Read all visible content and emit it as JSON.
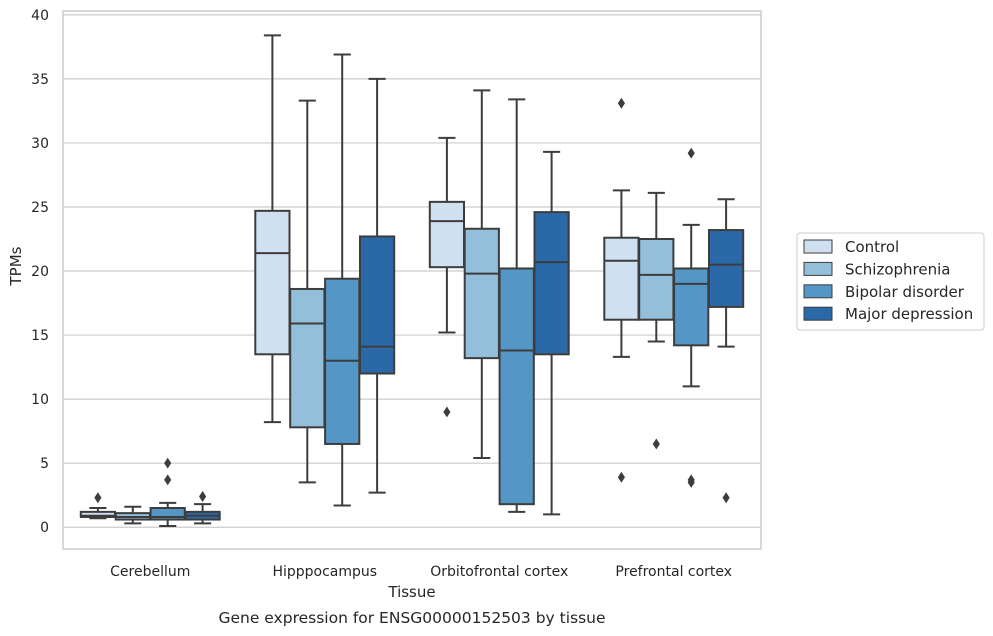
{
  "chart_data": {
    "type": "box",
    "xlabel": "Tissue",
    "ylabel": "TPMs",
    "caption": "Gene expression for ENSG00000152503 by tissue",
    "ylim": [
      -1.7,
      40.3
    ],
    "yticks": [
      0,
      5,
      10,
      15,
      20,
      25,
      30,
      35,
      40
    ],
    "grid": "horizontal",
    "legend_position": "right",
    "categories": [
      "Cerebellum",
      "Hipppocampus",
      "Orbitofrontal cortex",
      "Prefrontal cortex"
    ],
    "series": [
      {
        "name": "Control",
        "color": "#cfe0f1",
        "boxes": [
          {
            "whislo": 0.7,
            "q1": 0.8,
            "med": 0.9,
            "q3": 1.2,
            "whishi": 1.5,
            "fliers": [
              2.3
            ]
          },
          {
            "whislo": 8.2,
            "q1": 13.5,
            "med": 21.4,
            "q3": 24.7,
            "whishi": 38.4,
            "fliers": []
          },
          {
            "whislo": 15.2,
            "q1": 20.3,
            "med": 23.9,
            "q3": 25.4,
            "whishi": 30.4,
            "fliers": [
              9.0
            ]
          },
          {
            "whislo": 13.3,
            "q1": 16.2,
            "med": 20.8,
            "q3": 22.6,
            "whishi": 26.3,
            "fliers": [
              33.1,
              3.9
            ]
          }
        ]
      },
      {
        "name": "Schizophrenia",
        "color": "#93bfdb",
        "boxes": [
          {
            "whislo": 0.3,
            "q1": 0.6,
            "med": 0.8,
            "q3": 1.1,
            "whishi": 1.6,
            "fliers": []
          },
          {
            "whislo": 3.5,
            "q1": 7.8,
            "med": 15.9,
            "q3": 18.6,
            "whishi": 33.3,
            "fliers": []
          },
          {
            "whislo": 5.4,
            "q1": 13.2,
            "med": 19.8,
            "q3": 23.3,
            "whishi": 34.1,
            "fliers": []
          },
          {
            "whislo": 14.5,
            "q1": 16.2,
            "med": 19.7,
            "q3": 22.5,
            "whishi": 26.1,
            "fliers": [
              6.5
            ]
          }
        ]
      },
      {
        "name": "Bipolar disorder",
        "color": "#5497c6",
        "boxes": [
          {
            "whislo": 0.1,
            "q1": 0.6,
            "med": 0.8,
            "q3": 1.5,
            "whishi": 1.9,
            "fliers": [
              5.0,
              3.7
            ]
          },
          {
            "whislo": 1.7,
            "q1": 6.5,
            "med": 13.0,
            "q3": 19.4,
            "whishi": 36.9,
            "fliers": []
          },
          {
            "whislo": 1.2,
            "q1": 1.8,
            "med": 13.8,
            "q3": 20.2,
            "whishi": 33.4,
            "fliers": []
          },
          {
            "whislo": 11.0,
            "q1": 14.2,
            "med": 19.0,
            "q3": 20.2,
            "whishi": 23.6,
            "fliers": [
              29.2,
              3.7,
              3.5
            ]
          }
        ]
      },
      {
        "name": "Major depression",
        "color": "#2a68a8",
        "boxes": [
          {
            "whislo": 0.3,
            "q1": 0.6,
            "med": 0.9,
            "q3": 1.2,
            "whishi": 1.8,
            "fliers": [
              2.4
            ]
          },
          {
            "whislo": 2.7,
            "q1": 12.0,
            "med": 14.1,
            "q3": 22.7,
            "whishi": 35.0,
            "fliers": []
          },
          {
            "whislo": 1.0,
            "q1": 13.5,
            "med": 20.7,
            "q3": 24.6,
            "whishi": 29.3,
            "fliers": []
          },
          {
            "whislo": 14.1,
            "q1": 17.2,
            "med": 20.5,
            "q3": 23.2,
            "whishi": 25.6,
            "fliers": [
              2.3
            ]
          }
        ]
      }
    ]
  }
}
